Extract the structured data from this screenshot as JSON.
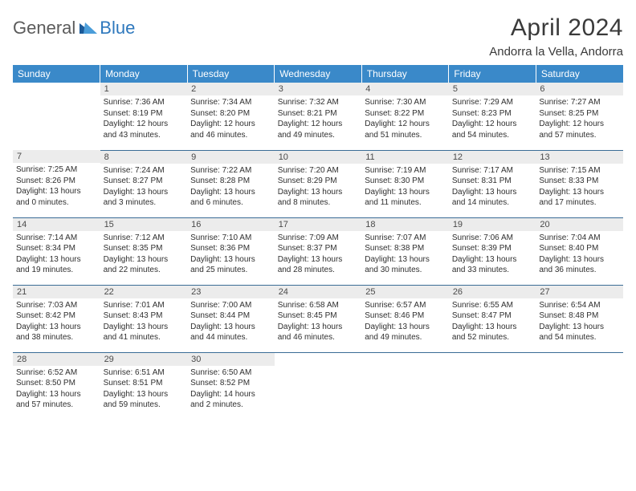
{
  "logo": {
    "part1": "General",
    "part2": "Blue"
  },
  "title": "April 2024",
  "location": "Andorra la Vella, Andorra",
  "colors": {
    "header_bg": "#3a89c9",
    "header_fg": "#ffffff",
    "daynum_bg": "#ececec",
    "daynum_fg": "#4a4a4a",
    "body_text": "#2f2f2f",
    "rule": "#3a6c96",
    "logo_gray": "#5b5b5b",
    "logo_blue": "#2e78bd"
  },
  "day_headers": [
    "Sunday",
    "Monday",
    "Tuesday",
    "Wednesday",
    "Thursday",
    "Friday",
    "Saturday"
  ],
  "weeks": [
    [
      null,
      {
        "n": "1",
        "sr": "Sunrise: 7:36 AM",
        "ss": "Sunset: 8:19 PM",
        "d1": "Daylight: 12 hours",
        "d2": "and 43 minutes."
      },
      {
        "n": "2",
        "sr": "Sunrise: 7:34 AM",
        "ss": "Sunset: 8:20 PM",
        "d1": "Daylight: 12 hours",
        "d2": "and 46 minutes."
      },
      {
        "n": "3",
        "sr": "Sunrise: 7:32 AM",
        "ss": "Sunset: 8:21 PM",
        "d1": "Daylight: 12 hours",
        "d2": "and 49 minutes."
      },
      {
        "n": "4",
        "sr": "Sunrise: 7:30 AM",
        "ss": "Sunset: 8:22 PM",
        "d1": "Daylight: 12 hours",
        "d2": "and 51 minutes."
      },
      {
        "n": "5",
        "sr": "Sunrise: 7:29 AM",
        "ss": "Sunset: 8:23 PM",
        "d1": "Daylight: 12 hours",
        "d2": "and 54 minutes."
      },
      {
        "n": "6",
        "sr": "Sunrise: 7:27 AM",
        "ss": "Sunset: 8:25 PM",
        "d1": "Daylight: 12 hours",
        "d2": "and 57 minutes."
      }
    ],
    [
      {
        "n": "7",
        "sr": "Sunrise: 7:25 AM",
        "ss": "Sunset: 8:26 PM",
        "d1": "Daylight: 13 hours",
        "d2": "and 0 minutes."
      },
      {
        "n": "8",
        "sr": "Sunrise: 7:24 AM",
        "ss": "Sunset: 8:27 PM",
        "d1": "Daylight: 13 hours",
        "d2": "and 3 minutes."
      },
      {
        "n": "9",
        "sr": "Sunrise: 7:22 AM",
        "ss": "Sunset: 8:28 PM",
        "d1": "Daylight: 13 hours",
        "d2": "and 6 minutes."
      },
      {
        "n": "10",
        "sr": "Sunrise: 7:20 AM",
        "ss": "Sunset: 8:29 PM",
        "d1": "Daylight: 13 hours",
        "d2": "and 8 minutes."
      },
      {
        "n": "11",
        "sr": "Sunrise: 7:19 AM",
        "ss": "Sunset: 8:30 PM",
        "d1": "Daylight: 13 hours",
        "d2": "and 11 minutes."
      },
      {
        "n": "12",
        "sr": "Sunrise: 7:17 AM",
        "ss": "Sunset: 8:31 PM",
        "d1": "Daylight: 13 hours",
        "d2": "and 14 minutes."
      },
      {
        "n": "13",
        "sr": "Sunrise: 7:15 AM",
        "ss": "Sunset: 8:33 PM",
        "d1": "Daylight: 13 hours",
        "d2": "and 17 minutes."
      }
    ],
    [
      {
        "n": "14",
        "sr": "Sunrise: 7:14 AM",
        "ss": "Sunset: 8:34 PM",
        "d1": "Daylight: 13 hours",
        "d2": "and 19 minutes."
      },
      {
        "n": "15",
        "sr": "Sunrise: 7:12 AM",
        "ss": "Sunset: 8:35 PM",
        "d1": "Daylight: 13 hours",
        "d2": "and 22 minutes."
      },
      {
        "n": "16",
        "sr": "Sunrise: 7:10 AM",
        "ss": "Sunset: 8:36 PM",
        "d1": "Daylight: 13 hours",
        "d2": "and 25 minutes."
      },
      {
        "n": "17",
        "sr": "Sunrise: 7:09 AM",
        "ss": "Sunset: 8:37 PM",
        "d1": "Daylight: 13 hours",
        "d2": "and 28 minutes."
      },
      {
        "n": "18",
        "sr": "Sunrise: 7:07 AM",
        "ss": "Sunset: 8:38 PM",
        "d1": "Daylight: 13 hours",
        "d2": "and 30 minutes."
      },
      {
        "n": "19",
        "sr": "Sunrise: 7:06 AM",
        "ss": "Sunset: 8:39 PM",
        "d1": "Daylight: 13 hours",
        "d2": "and 33 minutes."
      },
      {
        "n": "20",
        "sr": "Sunrise: 7:04 AM",
        "ss": "Sunset: 8:40 PM",
        "d1": "Daylight: 13 hours",
        "d2": "and 36 minutes."
      }
    ],
    [
      {
        "n": "21",
        "sr": "Sunrise: 7:03 AM",
        "ss": "Sunset: 8:42 PM",
        "d1": "Daylight: 13 hours",
        "d2": "and 38 minutes."
      },
      {
        "n": "22",
        "sr": "Sunrise: 7:01 AM",
        "ss": "Sunset: 8:43 PM",
        "d1": "Daylight: 13 hours",
        "d2": "and 41 minutes."
      },
      {
        "n": "23",
        "sr": "Sunrise: 7:00 AM",
        "ss": "Sunset: 8:44 PM",
        "d1": "Daylight: 13 hours",
        "d2": "and 44 minutes."
      },
      {
        "n": "24",
        "sr": "Sunrise: 6:58 AM",
        "ss": "Sunset: 8:45 PM",
        "d1": "Daylight: 13 hours",
        "d2": "and 46 minutes."
      },
      {
        "n": "25",
        "sr": "Sunrise: 6:57 AM",
        "ss": "Sunset: 8:46 PM",
        "d1": "Daylight: 13 hours",
        "d2": "and 49 minutes."
      },
      {
        "n": "26",
        "sr": "Sunrise: 6:55 AM",
        "ss": "Sunset: 8:47 PM",
        "d1": "Daylight: 13 hours",
        "d2": "and 52 minutes."
      },
      {
        "n": "27",
        "sr": "Sunrise: 6:54 AM",
        "ss": "Sunset: 8:48 PM",
        "d1": "Daylight: 13 hours",
        "d2": "and 54 minutes."
      }
    ],
    [
      {
        "n": "28",
        "sr": "Sunrise: 6:52 AM",
        "ss": "Sunset: 8:50 PM",
        "d1": "Daylight: 13 hours",
        "d2": "and 57 minutes."
      },
      {
        "n": "29",
        "sr": "Sunrise: 6:51 AM",
        "ss": "Sunset: 8:51 PM",
        "d1": "Daylight: 13 hours",
        "d2": "and 59 minutes."
      },
      {
        "n": "30",
        "sr": "Sunrise: 6:50 AM",
        "ss": "Sunset: 8:52 PM",
        "d1": "Daylight: 14 hours",
        "d2": "and 2 minutes."
      },
      null,
      null,
      null,
      null
    ]
  ]
}
